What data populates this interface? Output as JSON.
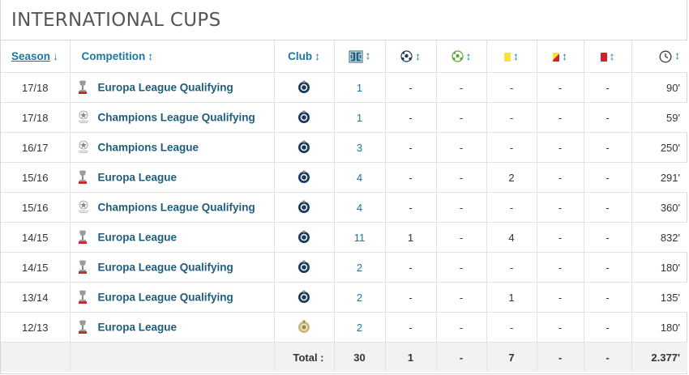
{
  "section_title": "INTERNATIONAL CUPS",
  "headers": {
    "season": "Season",
    "season_sort": "↓",
    "competition": "Competition",
    "club": "Club",
    "sort": "↕"
  },
  "header_icons": [
    "appearances-icon",
    "goals-icon",
    "assists-icon",
    "yellow-card-icon",
    "second-yellow-card-icon",
    "red-card-icon",
    "minutes-clock-icon"
  ],
  "colors": {
    "link": "#1d75a3",
    "competition": "#1d5d7e",
    "yellow": "#f5e33a",
    "red": "#d42129",
    "club_primary": "#1a3a5e"
  },
  "rows": [
    {
      "season": "17/18",
      "competition": "Europa League Qualifying",
      "cup": "europa",
      "crest": "club-brugge",
      "apps": "1",
      "goals": "-",
      "assists": "-",
      "yellow": "-",
      "second_yellow": "-",
      "red": "-",
      "minutes": "90'"
    },
    {
      "season": "17/18",
      "competition": "Champions League Qualifying",
      "cup": "champions",
      "crest": "club-brugge",
      "apps": "1",
      "goals": "-",
      "assists": "-",
      "yellow": "-",
      "second_yellow": "-",
      "red": "-",
      "minutes": "59'"
    },
    {
      "season": "16/17",
      "competition": "Champions League",
      "cup": "champions",
      "crest": "club-brugge",
      "apps": "3",
      "goals": "-",
      "assists": "-",
      "yellow": "-",
      "second_yellow": "-",
      "red": "-",
      "minutes": "250'"
    },
    {
      "season": "15/16",
      "competition": "Europa League",
      "cup": "europa",
      "crest": "club-brugge",
      "apps": "4",
      "goals": "-",
      "assists": "-",
      "yellow": "2",
      "second_yellow": "-",
      "red": "-",
      "minutes": "291'"
    },
    {
      "season": "15/16",
      "competition": "Champions League Qualifying",
      "cup": "champions",
      "crest": "club-brugge",
      "apps": "4",
      "goals": "-",
      "assists": "-",
      "yellow": "-",
      "second_yellow": "-",
      "red": "-",
      "minutes": "360'"
    },
    {
      "season": "14/15",
      "competition": "Europa League",
      "cup": "europa",
      "crest": "club-brugge",
      "apps": "11",
      "goals": "1",
      "assists": "-",
      "yellow": "4",
      "second_yellow": "-",
      "red": "-",
      "minutes": "832'"
    },
    {
      "season": "14/15",
      "competition": "Europa League Qualifying",
      "cup": "europa",
      "crest": "club-brugge",
      "apps": "2",
      "goals": "-",
      "assists": "-",
      "yellow": "-",
      "second_yellow": "-",
      "red": "-",
      "minutes": "180'"
    },
    {
      "season": "13/14",
      "competition": "Europa League Qualifying",
      "cup": "europa",
      "crest": "club-brugge",
      "apps": "2",
      "goals": "-",
      "assists": "-",
      "yellow": "1",
      "second_yellow": "-",
      "red": "-",
      "minutes": "135'"
    },
    {
      "season": "12/13",
      "competition": "Europa League",
      "cup": "europa",
      "crest": "club-gold",
      "apps": "2",
      "goals": "-",
      "assists": "-",
      "yellow": "-",
      "second_yellow": "-",
      "red": "-",
      "minutes": "180'"
    }
  ],
  "totals": {
    "label": "Total :",
    "apps": "30",
    "goals": "1",
    "assists": "-",
    "yellow": "7",
    "second_yellow": "-",
    "red": "-",
    "minutes": "2.377'"
  }
}
